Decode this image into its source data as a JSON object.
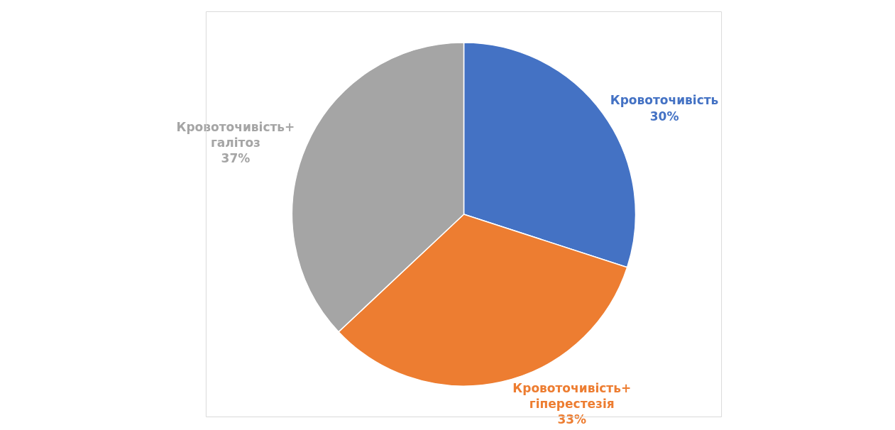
{
  "chart_data": {
    "type": "pie",
    "categories": [
      "Кровоточивість",
      "Кровоточивість+гіперестезія",
      "Кровоточивість+галітоз"
    ],
    "values": [
      30,
      33,
      37
    ],
    "value_labels": [
      "30%",
      "33%",
      "37%"
    ],
    "colors": [
      "#4472c4",
      "#ed7d31",
      "#a5a5a5"
    ],
    "legend": false
  }
}
